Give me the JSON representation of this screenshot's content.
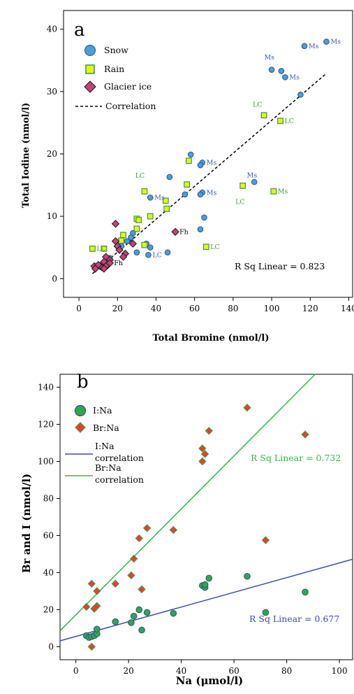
{
  "colors": {
    "snow_fill": "#4a9fd8",
    "snow_stroke": "#2e4f8f",
    "rain_fill": "#e8f21c",
    "rain_stroke": "#3a9a3a",
    "glacier_fill": "#c0447a",
    "glacier_stroke": "#1a1a1a",
    "ms_label": "#3a5ba8",
    "lc_label": "#3aa03a",
    "fh_label": "#000000",
    "ina_fill": "#2ea84a",
    "ina_stroke": "#2f4f8c",
    "brna_fill": "#e8402a",
    "brna_stroke": "#3aa04a",
    "ina_line": "#3b4fa6",
    "brna_line": "#32b84a",
    "rsq_ina": "#3b4fa6",
    "rsq_brna": "#32b84a"
  },
  "chart_data": [
    {
      "type": "scatter",
      "panel_label": "a",
      "xlabel": "Total Bromine (nmol/l)",
      "ylabel": "Total Iodine (nmol/l)",
      "xlim": [
        -8,
        142
      ],
      "ylim": [
        -3,
        43
      ],
      "x_ticks": [
        "0",
        "20",
        "40",
        "60",
        "80",
        "100",
        "120",
        "140"
      ],
      "y_ticks": [
        "0",
        "10",
        "20",
        "30",
        "40"
      ],
      "legend": [
        "Snow",
        "Rain",
        "Glacier ice",
        "Correlation"
      ],
      "legend_position": "top-left",
      "annotation": "R Sq Linear = 0.823",
      "correlation_line": {
        "x": [
          7,
          128
        ],
        "y": [
          0.8,
          32.8
        ]
      },
      "series": [
        {
          "name": "Snow",
          "marker": "circle",
          "points": [
            [
              128.4,
              38.0
            ],
            [
              117.0,
              37.3
            ],
            [
              100.0,
              33.5
            ],
            [
              105.0,
              33.3
            ],
            [
              107.0,
              32.3
            ],
            [
              115.0,
              29.5
            ],
            [
              91.0,
              15.5
            ],
            [
              58.0,
              19.9
            ],
            [
              64.0,
              18.6
            ],
            [
              63.0,
              18.2
            ],
            [
              47.0,
              16.3
            ],
            [
              37.0,
              13.0
            ],
            [
              55.0,
              13.5
            ],
            [
              64.0,
              13.8
            ],
            [
              63.0,
              13.5
            ],
            [
              65.0,
              9.8
            ],
            [
              63.0,
              7.9
            ],
            [
              35.0,
              5.6
            ],
            [
              37.0,
              5.0
            ],
            [
              30.0,
              4.2
            ],
            [
              36.0,
              3.8
            ],
            [
              46.0,
              4.2
            ],
            [
              28.0,
              7.3
            ],
            [
              27.0,
              6.6
            ],
            [
              25.0,
              6.0
            ],
            [
              22.0,
              5.2
            ],
            [
              16.0,
              3.3
            ],
            [
              14.0,
              2.7
            ]
          ]
        },
        {
          "name": "Rain",
          "marker": "square",
          "points": [
            [
              96.0,
              26.2
            ],
            [
              104.5,
              25.3
            ],
            [
              57.0,
              18.9
            ],
            [
              56.0,
              15.1
            ],
            [
              85.0,
              14.9
            ],
            [
              101.0,
              14.0
            ],
            [
              34.0,
              14.0
            ],
            [
              45.0,
              12.5
            ],
            [
              45.5,
              11.2
            ],
            [
              37.0,
              10.0
            ],
            [
              30.0,
              9.6
            ],
            [
              31.0,
              9.4
            ],
            [
              30.0,
              8.0
            ],
            [
              23.0,
              7.0
            ],
            [
              22.0,
              6.1
            ],
            [
              34.0,
              5.4
            ],
            [
              66.0,
              5.1
            ],
            [
              7.0,
              4.8
            ],
            [
              13.0,
              4.8
            ]
          ]
        },
        {
          "name": "Glacier ice",
          "marker": "diamond",
          "points": [
            [
              19.0,
              8.8
            ],
            [
              50.0,
              7.5
            ],
            [
              19.0,
              6.0
            ],
            [
              28.0,
              5.6
            ],
            [
              20.0,
              5.2
            ],
            [
              21.0,
              4.6
            ],
            [
              24.0,
              4.0
            ],
            [
              23.0,
              3.5
            ],
            [
              14.0,
              3.5
            ],
            [
              16.0,
              3.0
            ],
            [
              13.0,
              2.7
            ],
            [
              8.0,
              2.0
            ],
            [
              11.0,
              2.0
            ],
            [
              15.0,
              2.2
            ],
            [
              16.0,
              2.5
            ],
            [
              12.0,
              1.8
            ],
            [
              14.0,
              2.0
            ],
            [
              10.0,
              2.2
            ],
            [
              8.5,
              1.6
            ],
            [
              13.0,
              1.6
            ]
          ]
        }
      ],
      "point_labels": [
        {
          "text": "Ms",
          "x": 128.4,
          "y": 38.0,
          "kind": "ms"
        },
        {
          "text": "Ms",
          "x": 117.0,
          "y": 37.3,
          "kind": "ms"
        },
        {
          "text": "Ms",
          "x": 94.0,
          "y": 35.5,
          "kind": "ms"
        },
        {
          "text": "Ms",
          "x": 107.0,
          "y": 32.3,
          "kind": "ms"
        },
        {
          "text": "Ms",
          "x": 64.0,
          "y": 18.6,
          "kind": "ms"
        },
        {
          "text": "Ms",
          "x": 85.0,
          "y": 16.6,
          "kind": "ms"
        },
        {
          "text": "Ms",
          "x": 64.0,
          "y": 13.8,
          "kind": "ms"
        },
        {
          "text": "Ms",
          "x": 37.0,
          "y": 13.0,
          "kind": "ms"
        },
        {
          "text": "Ms",
          "x": 101.0,
          "y": 14.0,
          "kind": "lc"
        },
        {
          "text": "LC",
          "x": 88.0,
          "y": 27.9,
          "kind": "lc"
        },
        {
          "text": "LC",
          "x": 104.5,
          "y": 25.3,
          "kind": "lc"
        },
        {
          "text": "LC",
          "x": 27.0,
          "y": 16.5,
          "kind": "lc"
        },
        {
          "text": "LC",
          "x": 79.0,
          "y": 12.3,
          "kind": "lc"
        },
        {
          "text": "LC",
          "x": 66.0,
          "y": 5.1,
          "kind": "lc"
        },
        {
          "text": "LC",
          "x": 36.0,
          "y": 3.8,
          "kind": "ms"
        },
        {
          "text": "LC",
          "x": 7.0,
          "y": 4.8,
          "kind": "lc"
        },
        {
          "text": "Fh",
          "x": 50.0,
          "y": 7.5,
          "kind": "fh"
        },
        {
          "text": "Fh",
          "x": 16.0,
          "y": 2.5,
          "kind": "fh"
        }
      ]
    },
    {
      "type": "scatter",
      "panel_label": "b",
      "xlabel": "Na (μmol/l)",
      "ylabel": "Br and I (nmol/l)",
      "xlim": [
        -6,
        105
      ],
      "ylim": [
        -7,
        147
      ],
      "x_ticks": [
        "0",
        "20",
        "40",
        "60",
        "80",
        "100"
      ],
      "y_ticks": [
        "0",
        "20",
        "40",
        "60",
        "80",
        "100",
        "120",
        "140"
      ],
      "legend": [
        "I:Na",
        "Br:Na",
        "I:Na correlation",
        "Br:Na correlation"
      ],
      "legend_position": "top-left",
      "annotations": [
        "R Sq Linear = 0.732",
        "R Sq Linear = 0.677"
      ],
      "lines": [
        {
          "name": "Br:Na correlation",
          "x": [
            -6,
            90.8
          ],
          "y": [
            8.6,
            147
          ]
        },
        {
          "name": "I:Na correlation",
          "x": [
            -6,
            105
          ],
          "y": [
            3.2,
            47.2
          ]
        }
      ],
      "series": [
        {
          "name": "I:Na",
          "marker": "circle",
          "points": [
            [
              4.0,
              6.0
            ],
            [
              5.0,
              5.0
            ],
            [
              6.0,
              5.5
            ],
            [
              7.0,
              6.0
            ],
            [
              8.0,
              7.0
            ],
            [
              8.0,
              9.5
            ],
            [
              15.0,
              13.5
            ],
            [
              21.0,
              13.0
            ],
            [
              22.0,
              16.5
            ],
            [
              24.0,
              20.0
            ],
            [
              25.0,
              9.0
            ],
            [
              27.0,
              18.5
            ],
            [
              37.0,
              18.0
            ],
            [
              48.0,
              33.0
            ],
            [
              49.0,
              32.0
            ],
            [
              49.0,
              33.5
            ],
            [
              50.5,
              37.0
            ],
            [
              65.0,
              38.0
            ],
            [
              72.0,
              18.5
            ],
            [
              87.0,
              29.5
            ]
          ]
        },
        {
          "name": "Br:Na",
          "marker": "diamond",
          "points": [
            [
              4.0,
              21.5
            ],
            [
              6.0,
              34.0
            ],
            [
              6.0,
              0.0
            ],
            [
              7.0,
              20.5
            ],
            [
              8.0,
              30.0
            ],
            [
              8.0,
              22.0
            ],
            [
              15.0,
              34.0
            ],
            [
              21.0,
              38.5
            ],
            [
              22.0,
              47.5
            ],
            [
              24.0,
              58.5
            ],
            [
              25.0,
              31.0
            ],
            [
              27.0,
              64.0
            ],
            [
              37.0,
              63.0
            ],
            [
              48.0,
              107.0
            ],
            [
              48.0,
              100.0
            ],
            [
              49.0,
              104.0
            ],
            [
              50.5,
              116.5
            ],
            [
              65.0,
              129.0
            ],
            [
              72.0,
              57.5
            ],
            [
              87.0,
              114.5
            ]
          ]
        }
      ]
    }
  ]
}
